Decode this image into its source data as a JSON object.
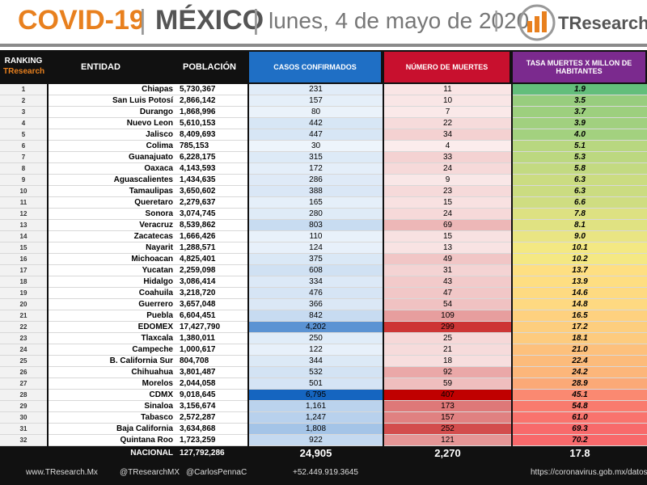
{
  "header": {
    "title_covid": "COVID-19",
    "title_country": "MÉXICO",
    "date": "lunes, 4 de mayo de 2020",
    "logo": "TResearch"
  },
  "table": {
    "columns": [
      "RANKING",
      "ENTIDAD",
      "POBLACIÓN",
      "CASOS CONFIRMADOS",
      "NÚMERO DE MUERTES",
      "TASA MUERTES X MILLON DE HABITANTES"
    ],
    "ranking_sub": "TResearch",
    "rows": [
      [
        "1",
        "Chiapas",
        "5,730,367",
        "231",
        "11",
        "1.9"
      ],
      [
        "2",
        "San Luis Potosí",
        "2,866,142",
        "157",
        "10",
        "3.5"
      ],
      [
        "3",
        "Durango",
        "1,868,996",
        "80",
        "7",
        "3.7"
      ],
      [
        "4",
        "Nuevo Leon",
        "5,610,153",
        "442",
        "22",
        "3.9"
      ],
      [
        "5",
        "Jalisco",
        "8,409,693",
        "447",
        "34",
        "4.0"
      ],
      [
        "6",
        "Colima",
        "785,153",
        "30",
        "4",
        "5.1"
      ],
      [
        "7",
        "Guanajuato",
        "6,228,175",
        "315",
        "33",
        "5.3"
      ],
      [
        "8",
        "Oaxaca",
        "4,143,593",
        "172",
        "24",
        "5.8"
      ],
      [
        "9",
        "Aguascalientes",
        "1,434,635",
        "286",
        "9",
        "6.3"
      ],
      [
        "10",
        "Tamaulipas",
        "3,650,602",
        "388",
        "23",
        "6.3"
      ],
      [
        "11",
        "Queretaro",
        "2,279,637",
        "165",
        "15",
        "6.6"
      ],
      [
        "12",
        "Sonora",
        "3,074,745",
        "280",
        "24",
        "7.8"
      ],
      [
        "13",
        "Veracruz",
        "8,539,862",
        "803",
        "69",
        "8.1"
      ],
      [
        "14",
        "Zacatecas",
        "1,666,426",
        "110",
        "15",
        "9.0"
      ],
      [
        "15",
        "Nayarit",
        "1,288,571",
        "124",
        "13",
        "10.1"
      ],
      [
        "16",
        "Michoacan",
        "4,825,401",
        "375",
        "49",
        "10.2"
      ],
      [
        "17",
        "Yucatan",
        "2,259,098",
        "608",
        "31",
        "13.7"
      ],
      [
        "18",
        "Hidalgo",
        "3,086,414",
        "334",
        "43",
        "13.9"
      ],
      [
        "19",
        "Coahuila",
        "3,218,720",
        "476",
        "47",
        "14.6"
      ],
      [
        "20",
        "Guerrero",
        "3,657,048",
        "366",
        "54",
        "14.8"
      ],
      [
        "21",
        "Puebla",
        "6,604,451",
        "842",
        "109",
        "16.5"
      ],
      [
        "22",
        "EDOMEX",
        "17,427,790",
        "4,202",
        "299",
        "17.2"
      ],
      [
        "23",
        "Tlaxcala",
        "1,380,011",
        "250",
        "25",
        "18.1"
      ],
      [
        "24",
        "Campeche",
        "1,000,617",
        "122",
        "21",
        "21.0"
      ],
      [
        "25",
        "B. California Sur",
        "804,708",
        "344",
        "18",
        "22.4"
      ],
      [
        "26",
        "Chihuahua",
        "3,801,487",
        "532",
        "92",
        "24.2"
      ],
      [
        "27",
        "Morelos",
        "2,044,058",
        "501",
        "59",
        "28.9"
      ],
      [
        "28",
        "CDMX",
        "9,018,645",
        "6,795",
        "407",
        "45.1"
      ],
      [
        "29",
        "Sinaloa",
        "3,156,674",
        "1,161",
        "173",
        "54.8"
      ],
      [
        "30",
        "Tabasco",
        "2,572,287",
        "1,247",
        "157",
        "61.0"
      ],
      [
        "31",
        "Baja California",
        "3,634,868",
        "1,808",
        "252",
        "69.3"
      ],
      [
        "32",
        "Quintana Roo",
        "1,723,259",
        "922",
        "121",
        "70.2"
      ]
    ],
    "total": [
      "NACIONAL",
      "127,792,286",
      "24,905",
      "2,270",
      "17.8"
    ]
  },
  "footer": {
    "website": "www.TResearch.Mx",
    "twitter": "@TResearchMX",
    "handle": "@CarlosPennaC",
    "phone": "+52.449.919.3645",
    "source": "https://coronavirus.gob.mx/datos/"
  }
}
